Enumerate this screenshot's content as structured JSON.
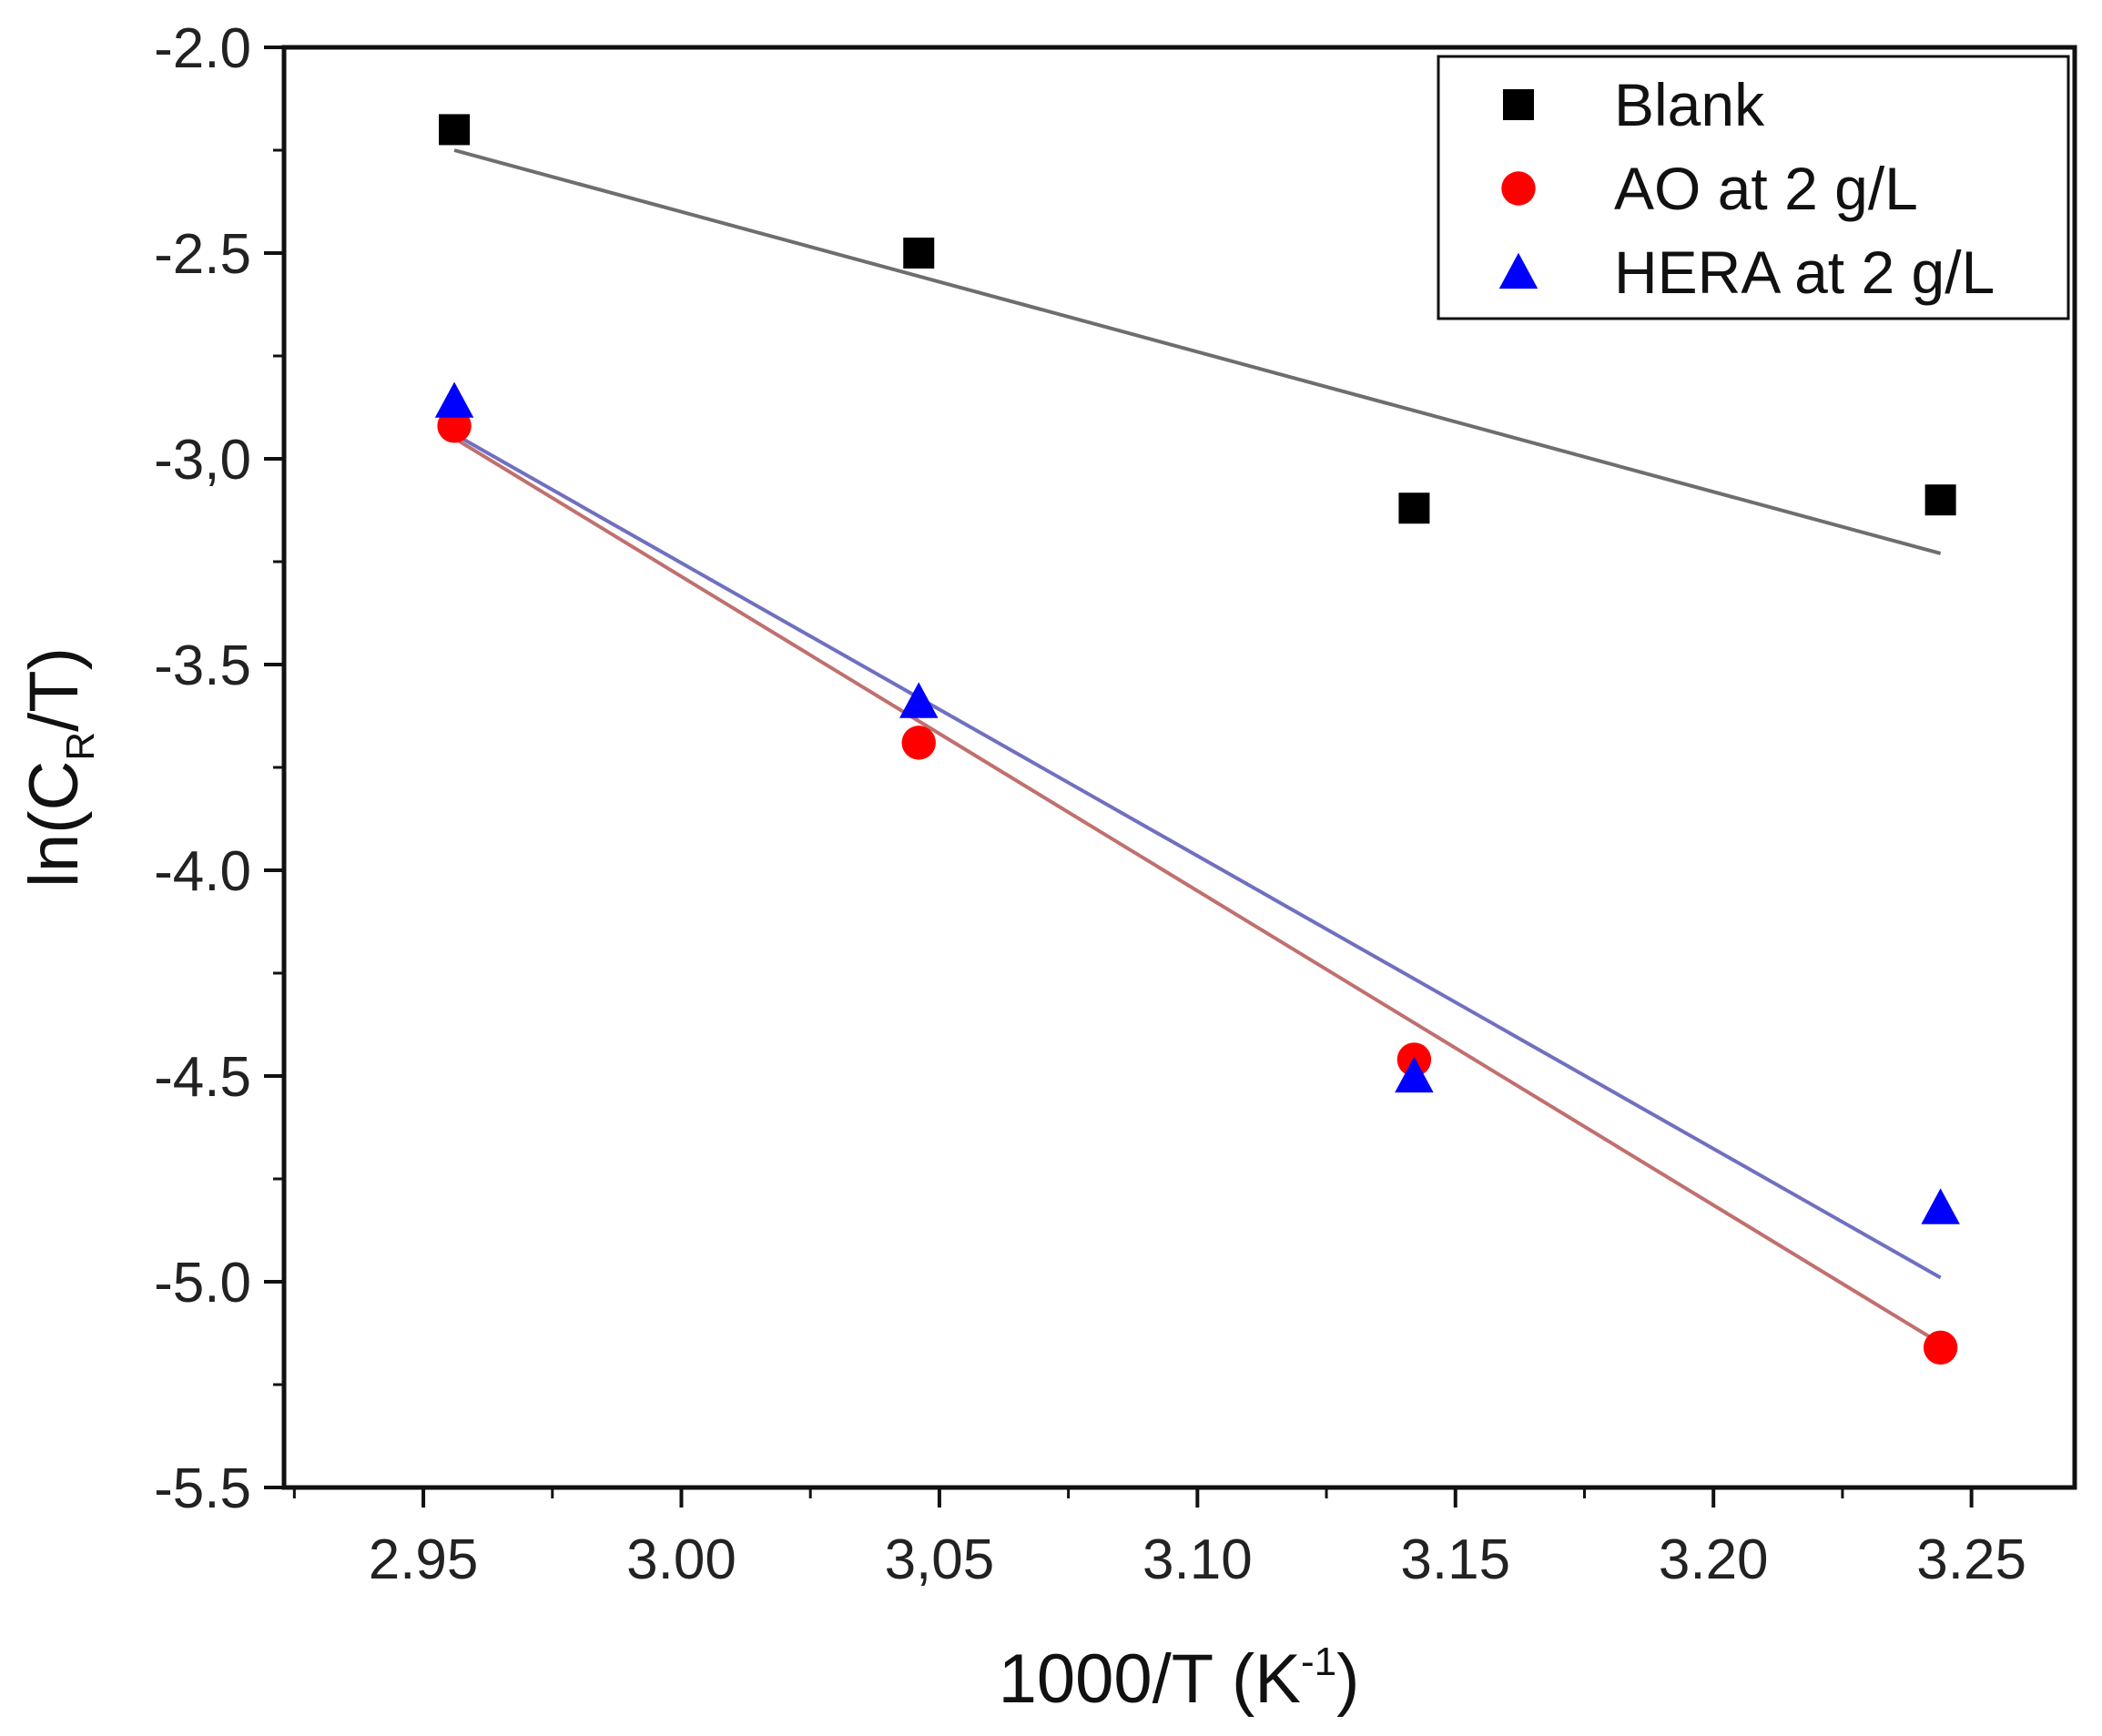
{
  "chart_data": {
    "type": "scatter",
    "title": "",
    "xlabel": {
      "main": "1000/T (K",
      "sup": "-1",
      "end": ")"
    },
    "ylabel": {
      "main": "ln(C",
      "sub": "R",
      "end": "/T)"
    },
    "xlim": [
      2.923,
      3.27
    ],
    "ylim": [
      -5.5,
      -2.0
    ],
    "x_ticks": [
      2.95,
      3.0,
      3.05,
      3.1,
      3.15,
      3.2,
      3.25
    ],
    "x_tick_labels": [
      "2.95",
      "3.00",
      "3,05",
      "3.10",
      "3.15",
      "3.20",
      "3.25"
    ],
    "y_ticks": [
      -2.0,
      -2.5,
      -3.0,
      -3.5,
      -4.0,
      -4.5,
      -5.0,
      -5.5
    ],
    "y_tick_labels": [
      "-2.0",
      "-2.5",
      "-3,0",
      "-3.5",
      "-4.0",
      "-4.5",
      "-5.0",
      "-5.5"
    ],
    "legend_position": "top-right",
    "grid": false,
    "series": [
      {
        "name": "Blank",
        "marker": "square",
        "color": "#000000",
        "fit_color": "#6e6e6e",
        "x": [
          2.956,
          3.046,
          3.142,
          3.244
        ],
        "y": [
          -2.2,
          -2.5,
          -3.12,
          -3.1
        ],
        "fit": [
          [
            2.956,
            -2.25
          ],
          [
            3.244,
            -3.23
          ]
        ]
      },
      {
        "name": "AO at 2 g/L",
        "marker": "circle",
        "color": "#ff0000",
        "fit_color": "#c0706e",
        "x": [
          2.956,
          3.046,
          3.142,
          3.244
        ],
        "y": [
          -2.92,
          -3.69,
          -4.46,
          -5.16
        ],
        "fit": [
          [
            2.956,
            -2.95
          ],
          [
            3.244,
            -5.15
          ]
        ]
      },
      {
        "name": "HERA at 2 g/L",
        "marker": "triangle",
        "color": "#0000ff",
        "fit_color": "#7070c0",
        "x": [
          2.956,
          3.046,
          3.142,
          3.244
        ],
        "y": [
          -2.86,
          -3.59,
          -4.5,
          -4.82
        ],
        "fit": [
          [
            2.956,
            -2.94
          ],
          [
            3.244,
            -4.99
          ]
        ]
      }
    ]
  }
}
